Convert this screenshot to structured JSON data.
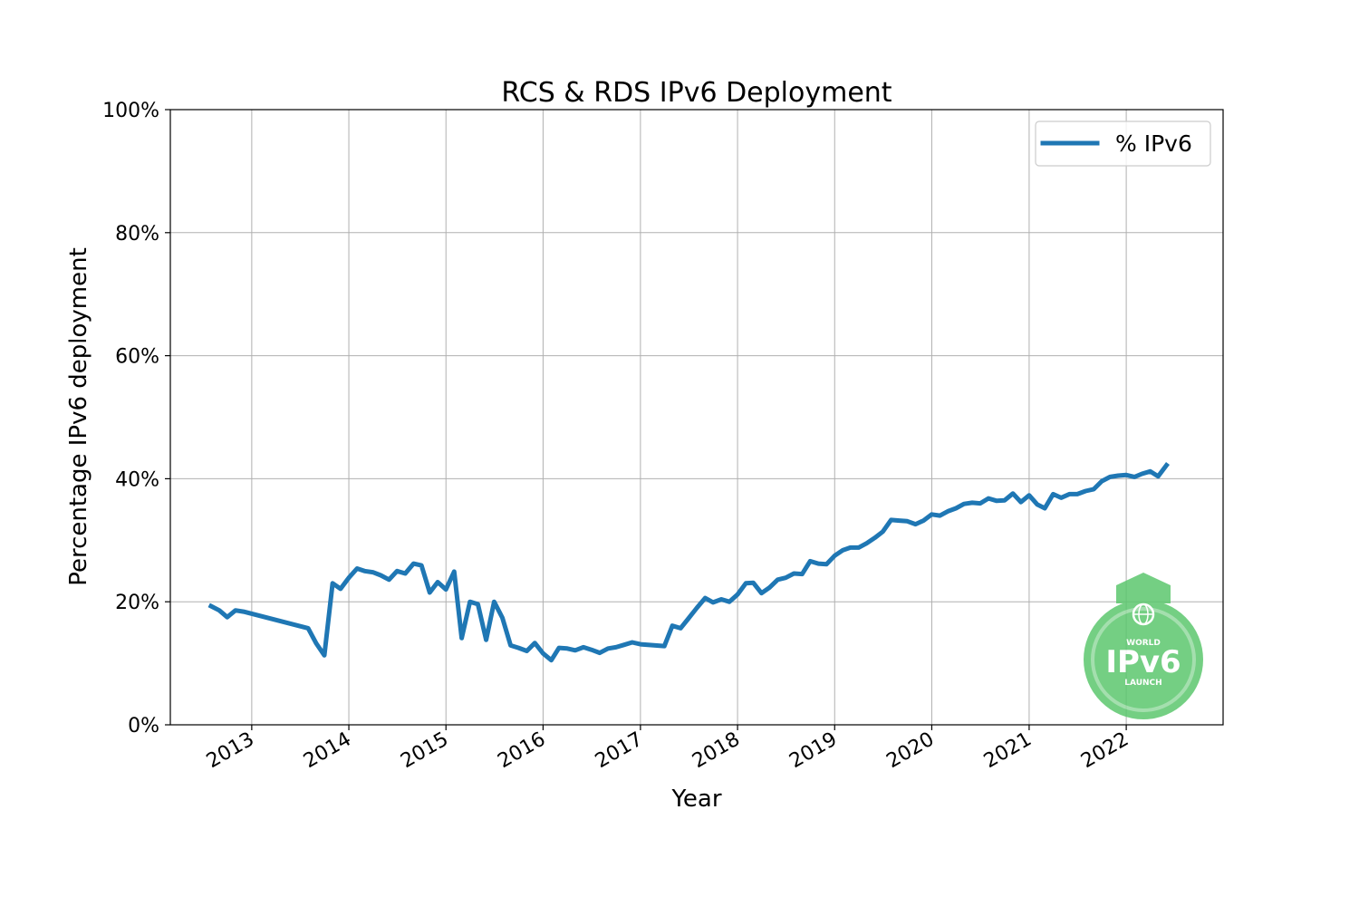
{
  "chart_data": {
    "type": "line",
    "title": "RCS & RDS IPv6 Deployment",
    "xlabel": "Year",
    "ylabel": "Percentage IPv6 deployment",
    "ylim": [
      0,
      100
    ],
    "xlim": [
      "2012-03-01",
      "2022-12-31"
    ],
    "y_ticks": [
      0,
      20,
      40,
      60,
      80,
      100
    ],
    "y_tick_labels": [
      "0%",
      "20%",
      "40%",
      "60%",
      "80%",
      "100%"
    ],
    "x_ticks": [
      "2013-01-01",
      "2014-01-01",
      "2015-01-01",
      "2016-01-01",
      "2017-01-01",
      "2018-01-01",
      "2019-01-01",
      "2020-01-01",
      "2021-01-01",
      "2022-01-01"
    ],
    "x_tick_labels": [
      "2013",
      "2014",
      "2015",
      "2016",
      "2017",
      "2018",
      "2019",
      "2020",
      "2021",
      "2022"
    ],
    "grid": true,
    "legend_position": "top-right",
    "series": [
      {
        "name": "% IPv6",
        "color": "#1f77b4",
        "points": [
          [
            "2012-08-01",
            19.3
          ],
          [
            "2012-09-01",
            18.6
          ],
          [
            "2012-10-01",
            17.5
          ],
          [
            "2012-11-01",
            18.6
          ],
          [
            "2012-12-01",
            18.4
          ],
          [
            "2013-08-01",
            15.7
          ],
          [
            "2013-09-01",
            13.2
          ],
          [
            "2013-10-01",
            11.3
          ],
          [
            "2013-11-01",
            23.0
          ],
          [
            "2013-12-01",
            22.1
          ],
          [
            "2014-01-01",
            23.9
          ],
          [
            "2014-02-01",
            25.4
          ],
          [
            "2014-03-01",
            25.0
          ],
          [
            "2014-04-01",
            24.8
          ],
          [
            "2014-05-01",
            24.3
          ],
          [
            "2014-06-01",
            23.6
          ],
          [
            "2014-07-01",
            25.0
          ],
          [
            "2014-08-01",
            24.6
          ],
          [
            "2014-09-01",
            26.2
          ],
          [
            "2014-10-01",
            25.9
          ],
          [
            "2014-11-01",
            21.5
          ],
          [
            "2014-12-01",
            23.2
          ],
          [
            "2015-01-01",
            22.0
          ],
          [
            "2015-02-01",
            24.9
          ],
          [
            "2015-03-01",
            14.1
          ],
          [
            "2015-04-01",
            20.0
          ],
          [
            "2015-05-01",
            19.6
          ],
          [
            "2015-06-01",
            13.8
          ],
          [
            "2015-07-01",
            20.0
          ],
          [
            "2015-08-01",
            17.4
          ],
          [
            "2015-09-01",
            12.9
          ],
          [
            "2015-10-01",
            12.5
          ],
          [
            "2015-11-01",
            12.0
          ],
          [
            "2015-12-01",
            13.3
          ],
          [
            "2016-01-01",
            11.6
          ],
          [
            "2016-02-01",
            10.5
          ],
          [
            "2016-03-01",
            12.5
          ],
          [
            "2016-04-01",
            12.4
          ],
          [
            "2016-05-01",
            12.1
          ],
          [
            "2016-06-01",
            12.6
          ],
          [
            "2016-07-01",
            12.2
          ],
          [
            "2016-08-01",
            11.7
          ],
          [
            "2016-09-01",
            12.4
          ],
          [
            "2016-10-01",
            12.6
          ],
          [
            "2016-11-01",
            13.0
          ],
          [
            "2016-12-01",
            13.4
          ],
          [
            "2017-01-01",
            13.1
          ],
          [
            "2017-04-01",
            12.8
          ],
          [
            "2017-05-01",
            16.1
          ],
          [
            "2017-06-01",
            15.7
          ],
          [
            "2017-07-01",
            17.3
          ],
          [
            "2017-08-01",
            19.0
          ],
          [
            "2017-09-01",
            20.6
          ],
          [
            "2017-10-01",
            19.9
          ],
          [
            "2017-11-01",
            20.4
          ],
          [
            "2017-12-01",
            20.0
          ],
          [
            "2018-01-01",
            21.2
          ],
          [
            "2018-02-01",
            23.0
          ],
          [
            "2018-03-01",
            23.1
          ],
          [
            "2018-04-01",
            21.4
          ],
          [
            "2018-05-01",
            22.3
          ],
          [
            "2018-06-01",
            23.6
          ],
          [
            "2018-07-01",
            23.9
          ],
          [
            "2018-08-01",
            24.6
          ],
          [
            "2018-09-01",
            24.5
          ],
          [
            "2018-10-01",
            26.6
          ],
          [
            "2018-11-01",
            26.2
          ],
          [
            "2018-12-01",
            26.1
          ],
          [
            "2019-01-01",
            27.5
          ],
          [
            "2019-02-01",
            28.4
          ],
          [
            "2019-03-01",
            28.8
          ],
          [
            "2019-04-01",
            28.8
          ],
          [
            "2019-05-01",
            29.5
          ],
          [
            "2019-06-01",
            30.4
          ],
          [
            "2019-07-01",
            31.4
          ],
          [
            "2019-08-01",
            33.3
          ],
          [
            "2019-09-01",
            33.2
          ],
          [
            "2019-10-01",
            33.1
          ],
          [
            "2019-11-01",
            32.6
          ],
          [
            "2019-12-01",
            33.2
          ],
          [
            "2020-01-01",
            34.2
          ],
          [
            "2020-02-01",
            34.0
          ],
          [
            "2020-03-01",
            34.7
          ],
          [
            "2020-04-01",
            35.2
          ],
          [
            "2020-05-01",
            35.9
          ],
          [
            "2020-06-01",
            36.1
          ],
          [
            "2020-07-01",
            36.0
          ],
          [
            "2020-08-01",
            36.8
          ],
          [
            "2020-09-01",
            36.4
          ],
          [
            "2020-10-01",
            36.5
          ],
          [
            "2020-11-01",
            37.6
          ],
          [
            "2020-12-01",
            36.2
          ],
          [
            "2021-01-01",
            37.3
          ],
          [
            "2021-02-01",
            35.8
          ],
          [
            "2021-03-01",
            35.2
          ],
          [
            "2021-04-01",
            37.5
          ],
          [
            "2021-05-01",
            36.9
          ],
          [
            "2021-06-01",
            37.5
          ],
          [
            "2021-07-01",
            37.5
          ],
          [
            "2021-08-01",
            38.0
          ],
          [
            "2021-09-01",
            38.3
          ],
          [
            "2021-10-01",
            39.6
          ],
          [
            "2021-11-01",
            40.3
          ],
          [
            "2021-12-01",
            40.5
          ],
          [
            "2022-01-01",
            40.6
          ],
          [
            "2022-02-01",
            40.3
          ],
          [
            "2022-03-01",
            40.8
          ],
          [
            "2022-04-01",
            41.2
          ],
          [
            "2022-05-01",
            40.4
          ],
          [
            "2022-06-01",
            42.2
          ]
        ]
      }
    ]
  },
  "watermark": {
    "icon": "world-ipv6-launch-logo",
    "color": "#5cc76e",
    "text_top": "WORLD",
    "text_main": "IPv6",
    "text_bottom": "LAUNCH"
  }
}
